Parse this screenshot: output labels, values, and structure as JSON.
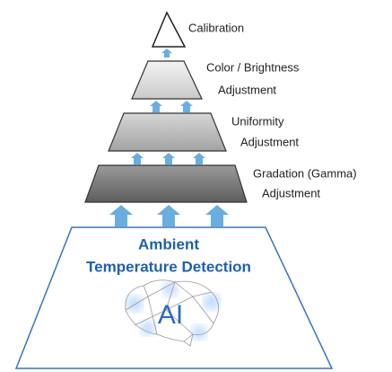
{
  "levels": [
    {
      "label": [
        "Calibration"
      ]
    },
    {
      "label": [
        "Color / Brightness",
        "Adjustment"
      ]
    },
    {
      "label": [
        "Uniformity",
        "Adjustment"
      ]
    },
    {
      "label": [
        "Gradation (Gamma)",
        "Adjustment"
      ]
    }
  ],
  "base": {
    "label": [
      "Ambient",
      "Temperature Detection"
    ],
    "icon": "AI"
  }
}
